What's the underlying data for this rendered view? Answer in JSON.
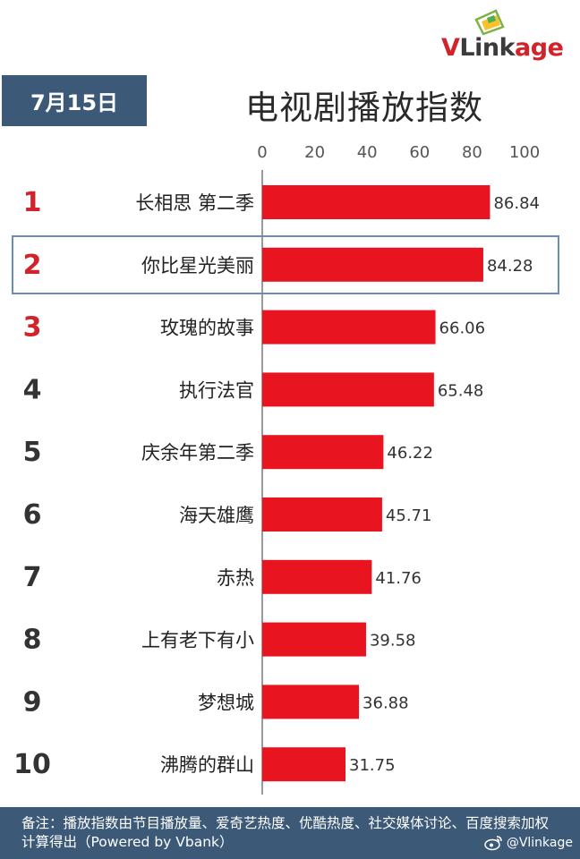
{
  "logo": {
    "brand_v": "V",
    "brand_link": "Link",
    "brand_age": "age"
  },
  "date": "7月15日",
  "colors": {
    "bar": "#e8141f",
    "rank_top3": "#d2232a",
    "rank_other": "#333333",
    "header": "#3c5a78",
    "highlight": "#6b8db5"
  },
  "footer": {
    "note": "备注：播放指数由节目播放量、爱奇艺热度、优酷热度、社交媒体讨论、百度搜索加权计算得出（Powered by Vbank）",
    "weibo": "@Vlinkage"
  },
  "chart_data": {
    "type": "bar",
    "orientation": "horizontal",
    "title": "电视剧播放指数",
    "xlim": [
      0,
      100
    ],
    "xticks": [
      "0",
      "20",
      "40",
      "60",
      "80",
      "100"
    ],
    "ranks": [
      "1",
      "2",
      "3",
      "4",
      "5",
      "6",
      "7",
      "8",
      "9",
      "10"
    ],
    "categories": [
      "长相思 第二季",
      "你比星光美丽",
      "玫瑰的故事",
      "执行法官",
      "庆余年第二季",
      "海天雄鹰",
      "赤热",
      "上有老下有小",
      "梦想城",
      "沸腾的群山"
    ],
    "values": [
      86.84,
      84.28,
      66.06,
      65.48,
      46.22,
      45.71,
      41.76,
      39.58,
      36.88,
      31.75
    ],
    "value_labels": [
      "86.84",
      "84.28",
      "66.06",
      "65.48",
      "46.22",
      "45.71",
      "41.76",
      "39.58",
      "36.88",
      "31.75"
    ],
    "highlighted_rank": 2
  }
}
